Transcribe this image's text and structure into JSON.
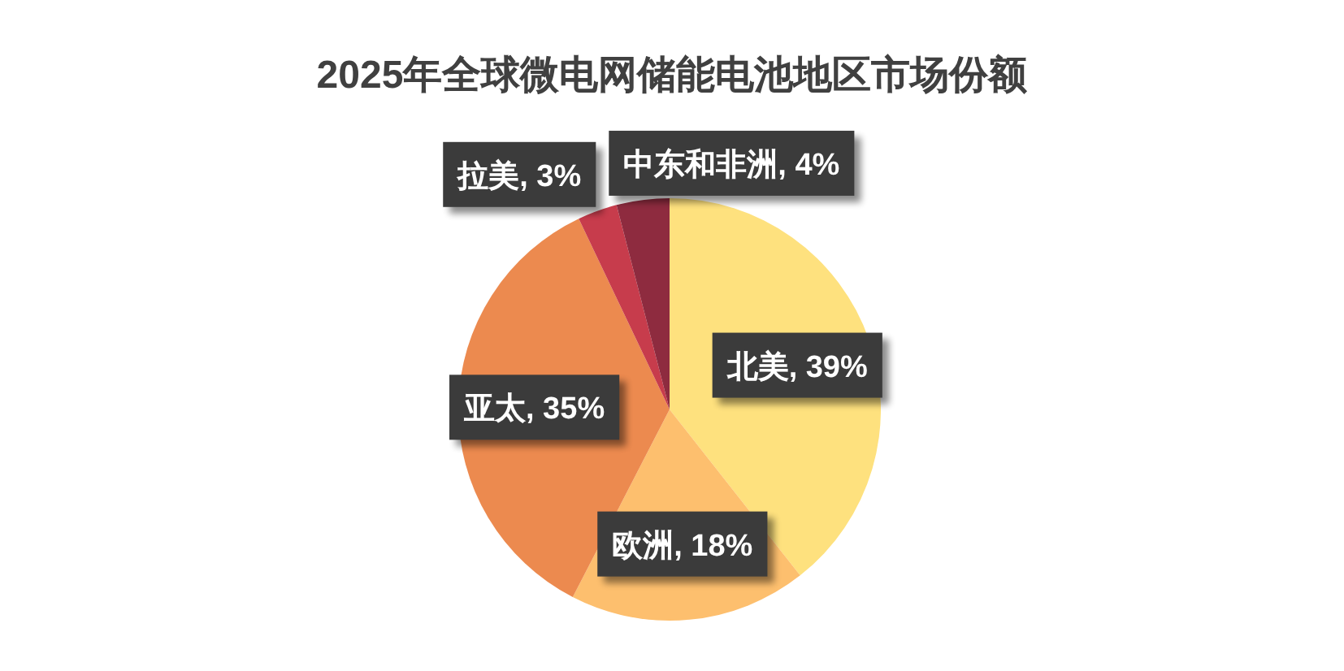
{
  "chart_data": {
    "type": "pie",
    "title": "2025年全球微电网储能电池地区市场份额",
    "categories": [
      "北美",
      "欧洲",
      "亚太",
      "拉美",
      "中东和非洲"
    ],
    "values": [
      39,
      18,
      35,
      3,
      4
    ],
    "colors": [
      "#fee17e",
      "#fdbf6e",
      "#ec8a4f",
      "#c73c4c",
      "#8e2b3f"
    ],
    "value_labels": [
      ", 39%",
      ", 18%",
      ", 35%",
      ", 3%",
      ", 4%"
    ]
  }
}
